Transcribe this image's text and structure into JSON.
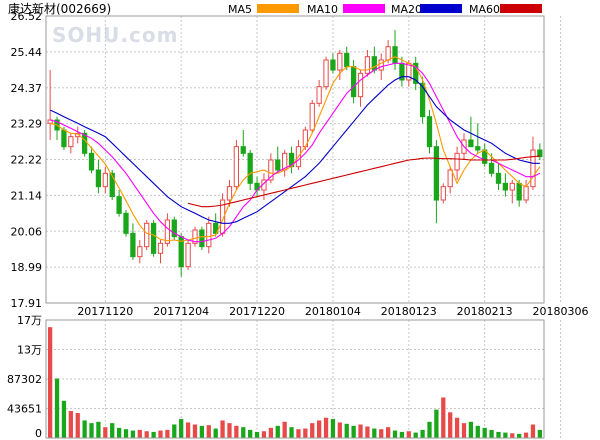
{
  "title": "康达新材(002669)",
  "watermark": "SOHU.com",
  "legend": [
    {
      "label": "MA5",
      "color": "#ff9900"
    },
    {
      "label": "MA10",
      "color": "#ff00ff"
    },
    {
      "label": "MA20",
      "color": "#0000cc"
    },
    {
      "label": "MA60",
      "color": "#cc0000"
    }
  ],
  "colors": {
    "up": "#e84a4a",
    "down": "#1aa61a",
    "grid": "#c8c8c8",
    "border": "#9a9a9a"
  },
  "chart_data": {
    "type": "candlestick",
    "price_axis": {
      "ticks": [
        "26.52",
        "25.44",
        "24.37",
        "23.29",
        "22.22",
        "21.14",
        "20.06",
        "18.99",
        "17.91"
      ],
      "ylim": [
        17.91,
        26.52
      ]
    },
    "date_labels": [
      {
        "i": 8,
        "text": "20171120"
      },
      {
        "i": 19,
        "text": "20171204"
      },
      {
        "i": 30,
        "text": "20171220"
      },
      {
        "i": 41,
        "text": "20180104"
      },
      {
        "i": 52,
        "text": "20180123"
      },
      {
        "i": 63,
        "text": "20180213"
      },
      {
        "i": 74,
        "text": "20180306"
      }
    ],
    "volume_axis": {
      "ticks": [
        "17万",
        "13万",
        "87302",
        "43651",
        "0"
      ],
      "ylim": [
        0,
        174604
      ]
    },
    "candles": [
      [
        23.3,
        24.9,
        22.8,
        23.4
      ],
      [
        23.4,
        23.5,
        22.8,
        23.1
      ],
      [
        23.1,
        23.2,
        22.5,
        22.6
      ],
      [
        22.6,
        23.0,
        22.4,
        22.9
      ],
      [
        22.9,
        23.2,
        22.7,
        23.0
      ],
      [
        23.0,
        23.1,
        22.3,
        22.4
      ],
      [
        22.4,
        22.6,
        21.8,
        21.9
      ],
      [
        21.9,
        22.2,
        21.2,
        21.4
      ],
      [
        21.4,
        22.0,
        21.2,
        21.8
      ],
      [
        21.8,
        21.9,
        21.0,
        21.1
      ],
      [
        21.1,
        21.3,
        20.5,
        20.6
      ],
      [
        20.6,
        20.7,
        19.9,
        20.0
      ],
      [
        20.0,
        20.3,
        19.2,
        19.3
      ],
      [
        19.3,
        19.8,
        19.1,
        19.6
      ],
      [
        19.6,
        20.4,
        19.5,
        20.3
      ],
      [
        20.3,
        20.4,
        19.3,
        19.4
      ],
      [
        19.4,
        19.8,
        19.1,
        19.7
      ],
      [
        19.7,
        20.6,
        19.6,
        20.4
      ],
      [
        20.4,
        20.5,
        19.8,
        19.9
      ],
      [
        19.9,
        20.0,
        18.7,
        19.0
      ],
      [
        19.0,
        19.8,
        18.9,
        19.7
      ],
      [
        19.7,
        20.2,
        19.6,
        20.1
      ],
      [
        20.1,
        20.2,
        19.5,
        19.6
      ],
      [
        19.6,
        20.5,
        19.4,
        20.3
      ],
      [
        20.3,
        20.6,
        19.9,
        20.0
      ],
      [
        20.0,
        21.2,
        19.9,
        21.0
      ],
      [
        21.0,
        21.6,
        20.8,
        21.4
      ],
      [
        21.4,
        22.8,
        21.3,
        22.6
      ],
      [
        22.6,
        23.1,
        22.3,
        22.4
      ],
      [
        22.4,
        22.5,
        21.3,
        21.5
      ],
      [
        21.5,
        21.7,
        21.1,
        21.3
      ],
      [
        21.3,
        21.8,
        21.0,
        21.6
      ],
      [
        21.6,
        22.4,
        21.5,
        22.2
      ],
      [
        22.2,
        22.6,
        21.8,
        21.9
      ],
      [
        21.9,
        22.5,
        21.7,
        22.4
      ],
      [
        22.4,
        22.6,
        21.8,
        22.0
      ],
      [
        22.0,
        22.8,
        21.9,
        22.6
      ],
      [
        22.6,
        23.2,
        22.5,
        23.1
      ],
      [
        23.1,
        24.0,
        23.0,
        23.9
      ],
      [
        23.9,
        24.6,
        23.8,
        24.4
      ],
      [
        24.4,
        25.3,
        24.3,
        25.2
      ],
      [
        25.2,
        25.4,
        24.8,
        24.9
      ],
      [
        24.9,
        25.5,
        24.6,
        25.4
      ],
      [
        25.4,
        25.6,
        24.9,
        25.0
      ],
      [
        25.0,
        25.2,
        23.9,
        24.1
      ],
      [
        24.1,
        24.9,
        23.8,
        24.8
      ],
      [
        24.8,
        25.5,
        24.7,
        25.3
      ],
      [
        25.3,
        25.6,
        24.8,
        24.9
      ],
      [
        24.9,
        25.4,
        24.6,
        25.2
      ],
      [
        25.2,
        25.8,
        25.1,
        25.6
      ],
      [
        25.6,
        26.1,
        24.9,
        25.1
      ],
      [
        25.1,
        25.3,
        24.4,
        24.6
      ],
      [
        24.6,
        25.2,
        24.4,
        25.1
      ],
      [
        25.1,
        25.3,
        24.3,
        24.5
      ],
      [
        24.5,
        24.7,
        23.3,
        23.5
      ],
      [
        23.5,
        23.7,
        22.4,
        22.6
      ],
      [
        22.6,
        22.8,
        20.3,
        21.0
      ],
      [
        21.0,
        21.5,
        20.9,
        21.4
      ],
      [
        21.4,
        22.0,
        21.2,
        21.9
      ],
      [
        21.9,
        22.6,
        21.6,
        22.4
      ],
      [
        22.4,
        23.0,
        22.2,
        22.8
      ],
      [
        22.8,
        23.5,
        22.6,
        22.6
      ],
      [
        22.6,
        23.3,
        22.4,
        22.5
      ],
      [
        22.5,
        22.7,
        22.0,
        22.1
      ],
      [
        22.1,
        22.4,
        21.7,
        21.8
      ],
      [
        21.8,
        22.1,
        21.3,
        21.5
      ],
      [
        21.5,
        21.8,
        21.1,
        21.3
      ],
      [
        21.3,
        21.6,
        20.9,
        21.5
      ],
      [
        21.5,
        21.6,
        20.8,
        21.0
      ],
      [
        21.0,
        21.6,
        20.9,
        21.4
      ],
      [
        21.4,
        22.9,
        21.3,
        22.5
      ],
      [
        22.5,
        22.7,
        22.2,
        22.3
      ]
    ],
    "volumes": [
      164000,
      88000,
      55000,
      40000,
      37000,
      26000,
      22000,
      24000,
      16000,
      22000,
      15000,
      13000,
      11000,
      12000,
      10000,
      9000,
      11000,
      12000,
      20000,
      28000,
      23000,
      20000,
      18000,
      19000,
      14000,
      26000,
      22000,
      18000,
      16000,
      12000,
      9000,
      10000,
      15000,
      18000,
      24000,
      16000,
      13000,
      14000,
      22000,
      26000,
      30000,
      28000,
      23000,
      21000,
      18000,
      20000,
      17000,
      14000,
      13000,
      16000,
      11000,
      9000,
      10000,
      8000,
      12000,
      24000,
      42000,
      60000,
      38000,
      30000,
      22000,
      24000,
      18000,
      15000,
      12000,
      9000,
      8000,
      7000,
      6000,
      8000,
      20000,
      12000
    ],
    "ma_series": [
      {
        "name": "MA5",
        "values": [
          23.3,
          23.25,
          23.1,
          23.0,
          22.98,
          22.8,
          22.56,
          22.32,
          22.08,
          21.72,
          21.36,
          20.98,
          20.58,
          20.24,
          20.0,
          19.95,
          19.82,
          19.78,
          19.8,
          19.76,
          19.8,
          19.85,
          19.9,
          19.9,
          19.95,
          20.4,
          20.9,
          21.3,
          21.6,
          21.8,
          21.85,
          21.9,
          21.8,
          21.8,
          21.9,
          22.0,
          22.3,
          22.6,
          23.0,
          23.5,
          24.0,
          24.5,
          24.8,
          25.0,
          25.0,
          24.9,
          24.9,
          25.0,
          25.1,
          25.2,
          25.3,
          25.2,
          25.1,
          25.0,
          24.6,
          24.0,
          23.3,
          22.5,
          22.0,
          21.5,
          21.9,
          22.2,
          22.4,
          22.5,
          22.3,
          22.1,
          21.9,
          21.7,
          21.5,
          21.4,
          21.7,
          22.0
        ]
      },
      {
        "name": "MA10",
        "values": [
          23.4,
          23.35,
          23.25,
          23.15,
          23.05,
          22.95,
          22.85,
          22.7,
          22.5,
          22.3,
          22.05,
          21.8,
          21.5,
          21.2,
          20.9,
          20.6,
          20.35,
          20.15,
          20.0,
          19.9,
          19.8,
          19.75,
          19.75,
          19.8,
          19.85,
          20.0,
          20.2,
          20.5,
          20.8,
          21.0,
          21.3,
          21.5,
          21.7,
          21.85,
          21.95,
          22.05,
          22.2,
          22.4,
          22.65,
          23.0,
          23.3,
          23.6,
          23.9,
          24.2,
          24.4,
          24.6,
          24.75,
          24.9,
          25.0,
          25.05,
          25.1,
          25.1,
          25.05,
          25.0,
          24.8,
          24.5,
          24.1,
          23.7,
          23.3,
          22.9,
          22.6,
          22.4,
          22.3,
          22.2,
          22.2,
          22.1,
          22.0,
          21.9,
          21.8,
          21.7,
          21.7,
          21.8
        ]
      },
      {
        "name": "MA20",
        "values": [
          23.7,
          23.6,
          23.5,
          23.4,
          23.3,
          23.2,
          23.1,
          23.0,
          22.9,
          22.7,
          22.5,
          22.3,
          22.1,
          21.9,
          21.7,
          21.5,
          21.3,
          21.1,
          20.95,
          20.8,
          20.7,
          20.6,
          20.5,
          20.4,
          20.35,
          20.3,
          20.3,
          20.35,
          20.45,
          20.55,
          20.65,
          20.8,
          20.95,
          21.1,
          21.25,
          21.4,
          21.55,
          21.7,
          21.9,
          22.1,
          22.35,
          22.6,
          22.85,
          23.1,
          23.35,
          23.6,
          23.85,
          24.05,
          24.25,
          24.45,
          24.6,
          24.7,
          24.7,
          24.6,
          24.4,
          24.1,
          23.8,
          23.6,
          23.4,
          23.25,
          23.1,
          23.0,
          22.9,
          22.8,
          22.7,
          22.55,
          22.4,
          22.3,
          22.2,
          22.15,
          22.1,
          22.1
        ]
      },
      {
        "name": "MA60",
        "values": [
          null,
          null,
          null,
          null,
          null,
          null,
          null,
          null,
          null,
          null,
          null,
          null,
          null,
          null,
          null,
          null,
          null,
          null,
          null,
          null,
          20.9,
          20.85,
          20.8,
          20.8,
          20.82,
          20.85,
          20.9,
          20.95,
          21.0,
          21.05,
          21.1,
          21.15,
          21.2,
          21.25,
          21.3,
          21.35,
          21.4,
          21.45,
          21.5,
          21.55,
          21.6,
          21.65,
          21.7,
          21.75,
          21.8,
          21.85,
          21.9,
          21.95,
          22.0,
          22.05,
          22.1,
          22.15,
          22.2,
          22.22,
          22.25,
          22.26,
          22.25,
          22.24,
          22.24,
          22.23,
          22.22,
          22.2,
          22.2,
          22.2,
          22.2,
          22.2,
          22.2,
          22.22,
          22.25,
          22.28,
          22.3,
          22.32
        ]
      }
    ]
  }
}
